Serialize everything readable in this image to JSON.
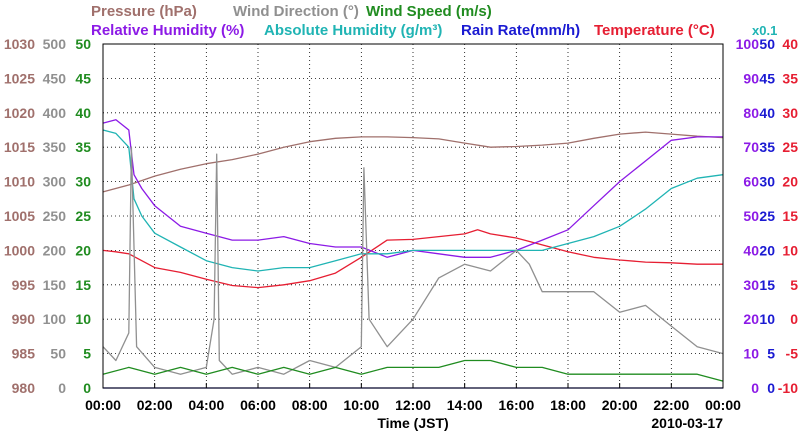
{
  "chart_data": {
    "type": "line",
    "date_label": "2010-03-17",
    "xlabel": "Time (JST)",
    "x_ticks": [
      "00:00",
      "02:00",
      "04:00",
      "06:00",
      "08:00",
      "10:00",
      "12:00",
      "14:00",
      "16:00",
      "18:00",
      "20:00",
      "22:00",
      "00:00"
    ],
    "x_range_hours": [
      0,
      24
    ],
    "grid": true,
    "legend_rows": [
      [
        {
          "key": "pressure",
          "text": "Pressure (hPa)",
          "color": "#a0706c"
        },
        {
          "key": "wind_dir",
          "text": "Wind Direction (°)",
          "color": "#909090"
        },
        {
          "key": "wind_speed",
          "text": "Wind Speed (m/s)",
          "color": "#208c20"
        }
      ],
      [
        {
          "key": "rel_hum",
          "text": "Relative Humidity (%)",
          "color": "#8c1ae6"
        },
        {
          "key": "abs_hum",
          "text": "Absolute Humidity (g/m³)",
          "color": "#20b4b4"
        },
        {
          "key": "rain",
          "text": "Rain Rate(mm/h)",
          "color": "#1a1ad2"
        },
        {
          "key": "temp",
          "text": "Temperature (°C)",
          "color": "#e61e32"
        }
      ]
    ],
    "abs_hum_scale_note": "x0.1",
    "axes": {
      "pressure": {
        "color": "#a0706c",
        "range": [
          980,
          1030
        ],
        "ticks": [
          "1030",
          "1025",
          "1020",
          "1015",
          "1010",
          "1005",
          "1000",
          "995",
          "990",
          "985",
          "980"
        ]
      },
      "wind_dir": {
        "color": "#909090",
        "range": [
          0,
          500
        ],
        "ticks": [
          "500",
          "450",
          "400",
          "350",
          "300",
          "250",
          "200",
          "150",
          "100",
          "50",
          "0"
        ]
      },
      "wind_speed": {
        "color": "#208c20",
        "range": [
          0,
          50
        ],
        "ticks": [
          "50",
          "45",
          "40",
          "35",
          "30",
          "25",
          "20",
          "15",
          "10",
          "5",
          "0"
        ]
      },
      "rel_hum": {
        "color": "#8c1ae6",
        "range": [
          0,
          100
        ],
        "ticks": [
          "100",
          "90",
          "80",
          "70",
          "60",
          "50",
          "40",
          "30",
          "20",
          "10",
          "0"
        ]
      },
      "rain": {
        "color": "#1a1ad2",
        "range": [
          0,
          50
        ],
        "ticks": [
          "50",
          "45",
          "40",
          "35",
          "30",
          "25",
          "20",
          "15",
          "10",
          "5",
          "0"
        ]
      },
      "temp": {
        "color": "#e61e32",
        "range": [
          -10,
          40
        ],
        "ticks": [
          "40",
          "35",
          "30",
          "25",
          "20",
          "15",
          "10",
          "5",
          "0",
          "-5",
          "-10"
        ]
      }
    },
    "series": [
      {
        "name": "Pressure (hPa)",
        "axis": "pressure",
        "color": "#a0706c",
        "points": [
          [
            0,
            1008.5
          ],
          [
            1,
            1009.5
          ],
          [
            2,
            1010.8
          ],
          [
            3,
            1011.8
          ],
          [
            4,
            1012.6
          ],
          [
            5,
            1013.2
          ],
          [
            6,
            1014.0
          ],
          [
            7,
            1015.0
          ],
          [
            8,
            1015.8
          ],
          [
            9,
            1016.3
          ],
          [
            10,
            1016.5
          ],
          [
            11,
            1016.5
          ],
          [
            12,
            1016.4
          ],
          [
            13,
            1016.2
          ],
          [
            14,
            1015.6
          ],
          [
            15,
            1015.0
          ],
          [
            16,
            1015.1
          ],
          [
            17,
            1015.3
          ],
          [
            18,
            1015.6
          ],
          [
            19,
            1016.3
          ],
          [
            20,
            1016.9
          ],
          [
            21,
            1017.2
          ],
          [
            22,
            1016.9
          ],
          [
            23,
            1016.6
          ],
          [
            24,
            1016.4
          ]
        ]
      },
      {
        "name": "Temperature (°C)",
        "axis": "temp",
        "color": "#e61e32",
        "points": [
          [
            0,
            10.0
          ],
          [
            0.5,
            9.8
          ],
          [
            1,
            9.5
          ],
          [
            1.5,
            8.5
          ],
          [
            2,
            7.5
          ],
          [
            3,
            6.8
          ],
          [
            4,
            5.8
          ],
          [
            5,
            4.9
          ],
          [
            6,
            4.6
          ],
          [
            7,
            5.0
          ],
          [
            8,
            5.6
          ],
          [
            9,
            6.7
          ],
          [
            10,
            9.0
          ],
          [
            11,
            11.5
          ],
          [
            12,
            11.6
          ],
          [
            13,
            12.0
          ],
          [
            14,
            12.4
          ],
          [
            14.5,
            13.0
          ],
          [
            15,
            12.4
          ],
          [
            16,
            11.8
          ],
          [
            17,
            10.8
          ],
          [
            18,
            9.8
          ],
          [
            19,
            9.0
          ],
          [
            20,
            8.6
          ],
          [
            21,
            8.3
          ],
          [
            22,
            8.2
          ],
          [
            23,
            8.0
          ],
          [
            24,
            8.0
          ]
        ]
      },
      {
        "name": "Relative Humidity (%)",
        "axis": "rel_hum",
        "color": "#8c1ae6",
        "points": [
          [
            0,
            77
          ],
          [
            0.5,
            78
          ],
          [
            1,
            75
          ],
          [
            1.2,
            62
          ],
          [
            1.5,
            58
          ],
          [
            2,
            53
          ],
          [
            3,
            47
          ],
          [
            4,
            45
          ],
          [
            5,
            43
          ],
          [
            6,
            43
          ],
          [
            7,
            44
          ],
          [
            8,
            42
          ],
          [
            9,
            41
          ],
          [
            10,
            41
          ],
          [
            11,
            38
          ],
          [
            12,
            40
          ],
          [
            13,
            39
          ],
          [
            14,
            38
          ],
          [
            15,
            38
          ],
          [
            16,
            40
          ],
          [
            17,
            43
          ],
          [
            18,
            46
          ],
          [
            19,
            53
          ],
          [
            20,
            60
          ],
          [
            21,
            66
          ],
          [
            22,
            72
          ],
          [
            23,
            73
          ],
          [
            24,
            73
          ]
        ]
      },
      {
        "name": "Absolute Humidity (g/m³)",
        "axis": "rel_hum",
        "color": "#20b4b4",
        "points": [
          [
            0,
            75
          ],
          [
            0.5,
            74
          ],
          [
            1,
            70
          ],
          [
            1.2,
            55
          ],
          [
            1.5,
            50
          ],
          [
            2,
            45
          ],
          [
            3,
            41
          ],
          [
            4,
            37
          ],
          [
            5,
            35
          ],
          [
            6,
            34
          ],
          [
            7,
            35
          ],
          [
            8,
            35
          ],
          [
            9,
            37
          ],
          [
            10,
            39
          ],
          [
            11,
            39
          ],
          [
            12,
            40
          ],
          [
            13,
            40
          ],
          [
            14,
            40
          ],
          [
            15,
            40
          ],
          [
            16,
            40
          ],
          [
            17,
            40
          ],
          [
            18,
            42
          ],
          [
            19,
            44
          ],
          [
            20,
            47
          ],
          [
            21,
            52
          ],
          [
            22,
            58
          ],
          [
            23,
            61
          ],
          [
            24,
            62
          ]
        ]
      },
      {
        "name": "Wind Direction (°)",
        "axis": "wind_dir",
        "color": "#909090",
        "points": [
          [
            0,
            60
          ],
          [
            0.5,
            40
          ],
          [
            1,
            80
          ],
          [
            1.1,
            350
          ],
          [
            1.3,
            60
          ],
          [
            2,
            30
          ],
          [
            3,
            20
          ],
          [
            4,
            30
          ],
          [
            4.3,
            100
          ],
          [
            4.4,
            340
          ],
          [
            4.5,
            40
          ],
          [
            5,
            20
          ],
          [
            6,
            30
          ],
          [
            7,
            20
          ],
          [
            8,
            40
          ],
          [
            9,
            30
          ],
          [
            10,
            60
          ],
          [
            10.1,
            320
          ],
          [
            10.3,
            100
          ],
          [
            11,
            60
          ],
          [
            12,
            100
          ],
          [
            13,
            160
          ],
          [
            14,
            180
          ],
          [
            15,
            170
          ],
          [
            16,
            200
          ],
          [
            16.5,
            180
          ],
          [
            17,
            140
          ],
          [
            18,
            140
          ],
          [
            19,
            140
          ],
          [
            20,
            110
          ],
          [
            21,
            120
          ],
          [
            22,
            90
          ],
          [
            23,
            60
          ],
          [
            24,
            50
          ]
        ]
      },
      {
        "name": "Wind Speed (m/s)",
        "axis": "wind_speed",
        "color": "#208c20",
        "points": [
          [
            0,
            2
          ],
          [
            1,
            3
          ],
          [
            2,
            2
          ],
          [
            3,
            3
          ],
          [
            4,
            2
          ],
          [
            5,
            3
          ],
          [
            6,
            2
          ],
          [
            7,
            3
          ],
          [
            8,
            2
          ],
          [
            9,
            3
          ],
          [
            10,
            2
          ],
          [
            11,
            3
          ],
          [
            12,
            3
          ],
          [
            13,
            3
          ],
          [
            14,
            4
          ],
          [
            15,
            4
          ],
          [
            16,
            3
          ],
          [
            17,
            3
          ],
          [
            18,
            2
          ],
          [
            19,
            2
          ],
          [
            20,
            2
          ],
          [
            21,
            2
          ],
          [
            22,
            2
          ],
          [
            23,
            2
          ],
          [
            24,
            1
          ]
        ]
      },
      {
        "name": "Rain Rate(mm/h)",
        "axis": "rain",
        "color": "#1a1ad2",
        "points": [
          [
            0,
            0
          ],
          [
            24,
            0
          ]
        ]
      }
    ]
  }
}
